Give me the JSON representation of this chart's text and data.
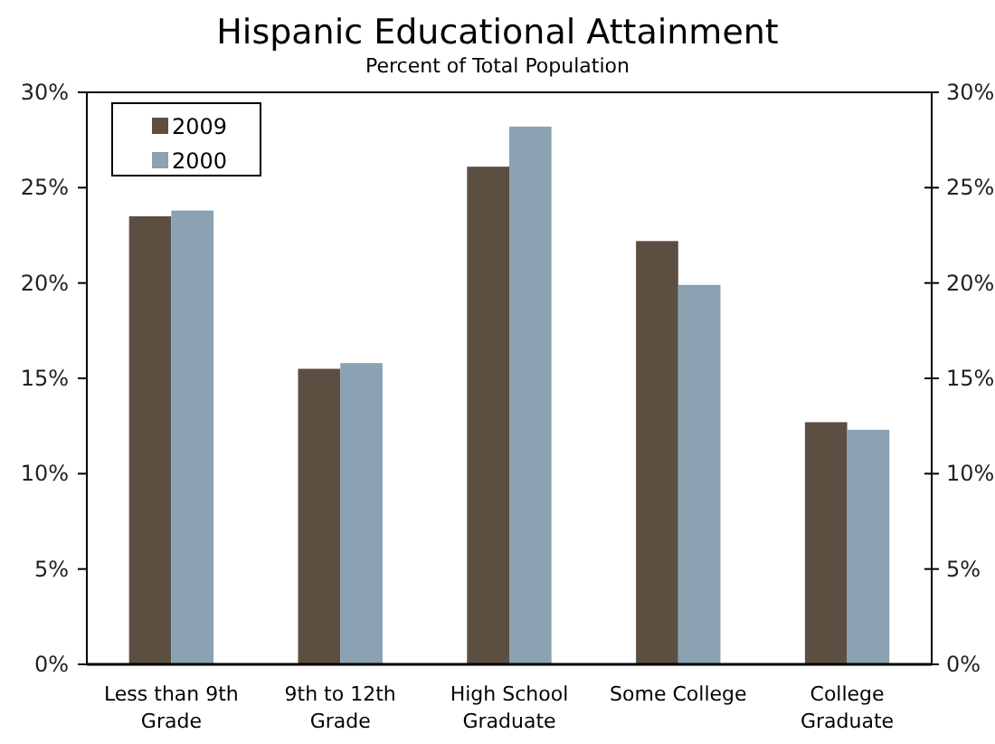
{
  "chart_data": {
    "type": "bar",
    "title": "Hispanic Educational Attainment",
    "subtitle": "Percent of Total Population",
    "categories": [
      "Less than 9th Grade",
      "9th to 12th Grade",
      "High School Graduate",
      "Some College",
      "College Graduate"
    ],
    "series": [
      {
        "name": "2009",
        "color": "#5c4f42",
        "values": [
          23.5,
          15.5,
          26.1,
          22.2,
          12.7
        ]
      },
      {
        "name": "2000",
        "color": "#8aa2b2",
        "values": [
          23.8,
          15.8,
          28.2,
          19.9,
          12.3
        ]
      }
    ],
    "ylim": [
      0,
      30
    ],
    "yticks": [
      {
        "value": 0,
        "label": "0%"
      },
      {
        "value": 5,
        "label": "5%"
      },
      {
        "value": 10,
        "label": "10%"
      },
      {
        "value": 15,
        "label": "15%"
      },
      {
        "value": 20,
        "label": "20%"
      },
      {
        "value": 25,
        "label": "25%"
      },
      {
        "value": 30,
        "label": "30%"
      }
    ],
    "y2lim": [
      0,
      30
    ],
    "y2ticks": [
      {
        "value": 0,
        "label": "0%"
      },
      {
        "value": 5,
        "label": "5%"
      },
      {
        "value": 10,
        "label": "10%"
      },
      {
        "value": 15,
        "label": "15%"
      },
      {
        "value": 20,
        "label": "20%"
      },
      {
        "value": 25,
        "label": "25%"
      },
      {
        "value": 30,
        "label": "30%"
      }
    ],
    "legend": "top left",
    "grid": false
  }
}
